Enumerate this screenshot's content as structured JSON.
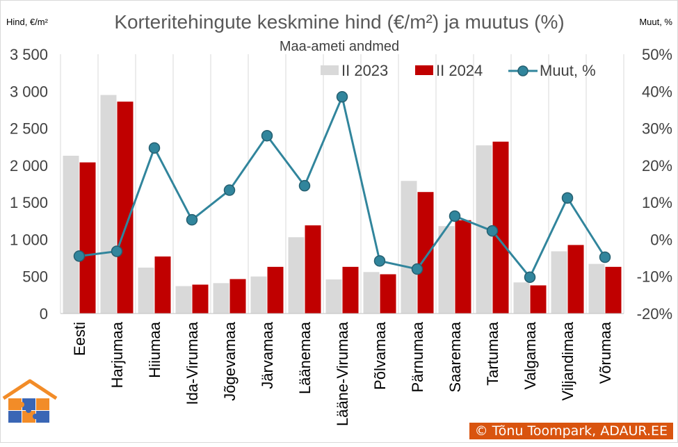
{
  "chart_data": {
    "type": "bar",
    "title": "Korteritehingute keskmine hind (€/m²) ja muutus (%)",
    "subtitle": "Maa-ameti andmed",
    "ylabel_left": "Hind, €/m²",
    "ylabel_right": "Muut, %",
    "ylim_left": [
      0,
      3500
    ],
    "yticks_left": [
      "3 500",
      "3 000",
      "2 500",
      "2 000",
      "1 500",
      "1 000",
      "500",
      "0"
    ],
    "ylim_right": [
      -20,
      50
    ],
    "yticks_right": [
      "50%",
      "40%",
      "30%",
      "20%",
      "10%",
      "0%",
      "-10%",
      "-20%"
    ],
    "categories": [
      "Eesti",
      "Harjumaa",
      "Hiiumaa",
      "Ida-Virumaa",
      "Jõgevamaa",
      "Järvamaa",
      "Läänemaa",
      "Lääne-Virumaa",
      "Põlvamaa",
      "Pärnumaa",
      "Saaremaa",
      "Tartumaa",
      "Valgamaa",
      "Viljandimaa",
      "Võrumaa"
    ],
    "series": [
      {
        "name": "II 2023",
        "kind": "bar",
        "color": "#d9d9d9",
        "values": [
          2130,
          2950,
          620,
          370,
          410,
          500,
          1030,
          460,
          560,
          1790,
          1180,
          2270,
          420,
          840,
          670
        ]
      },
      {
        "name": "II 2024",
        "kind": "bar",
        "color": "#c00000",
        "values": [
          2040,
          2860,
          770,
          390,
          465,
          630,
          1190,
          630,
          530,
          1640,
          1260,
          2320,
          380,
          925,
          630
        ]
      },
      {
        "name": "Muut, %",
        "kind": "line",
        "axis": "right",
        "color": "#31859c",
        "values": [
          -4.5,
          -3.2,
          24.7,
          5.3,
          13.3,
          28.0,
          14.5,
          38.5,
          -5.8,
          -8.0,
          6.3,
          2.3,
          -10.2,
          11.2,
          -4.8
        ]
      }
    ],
    "legend_position": "top-right",
    "grid": "vertical category gridlines"
  },
  "footer": {
    "copyright": "© Tõnu Toompark, ADAUR.EE"
  },
  "logo": {
    "name": "house-puzzle-logo",
    "colors": [
      "#f28c28",
      "#3a66b5"
    ]
  }
}
